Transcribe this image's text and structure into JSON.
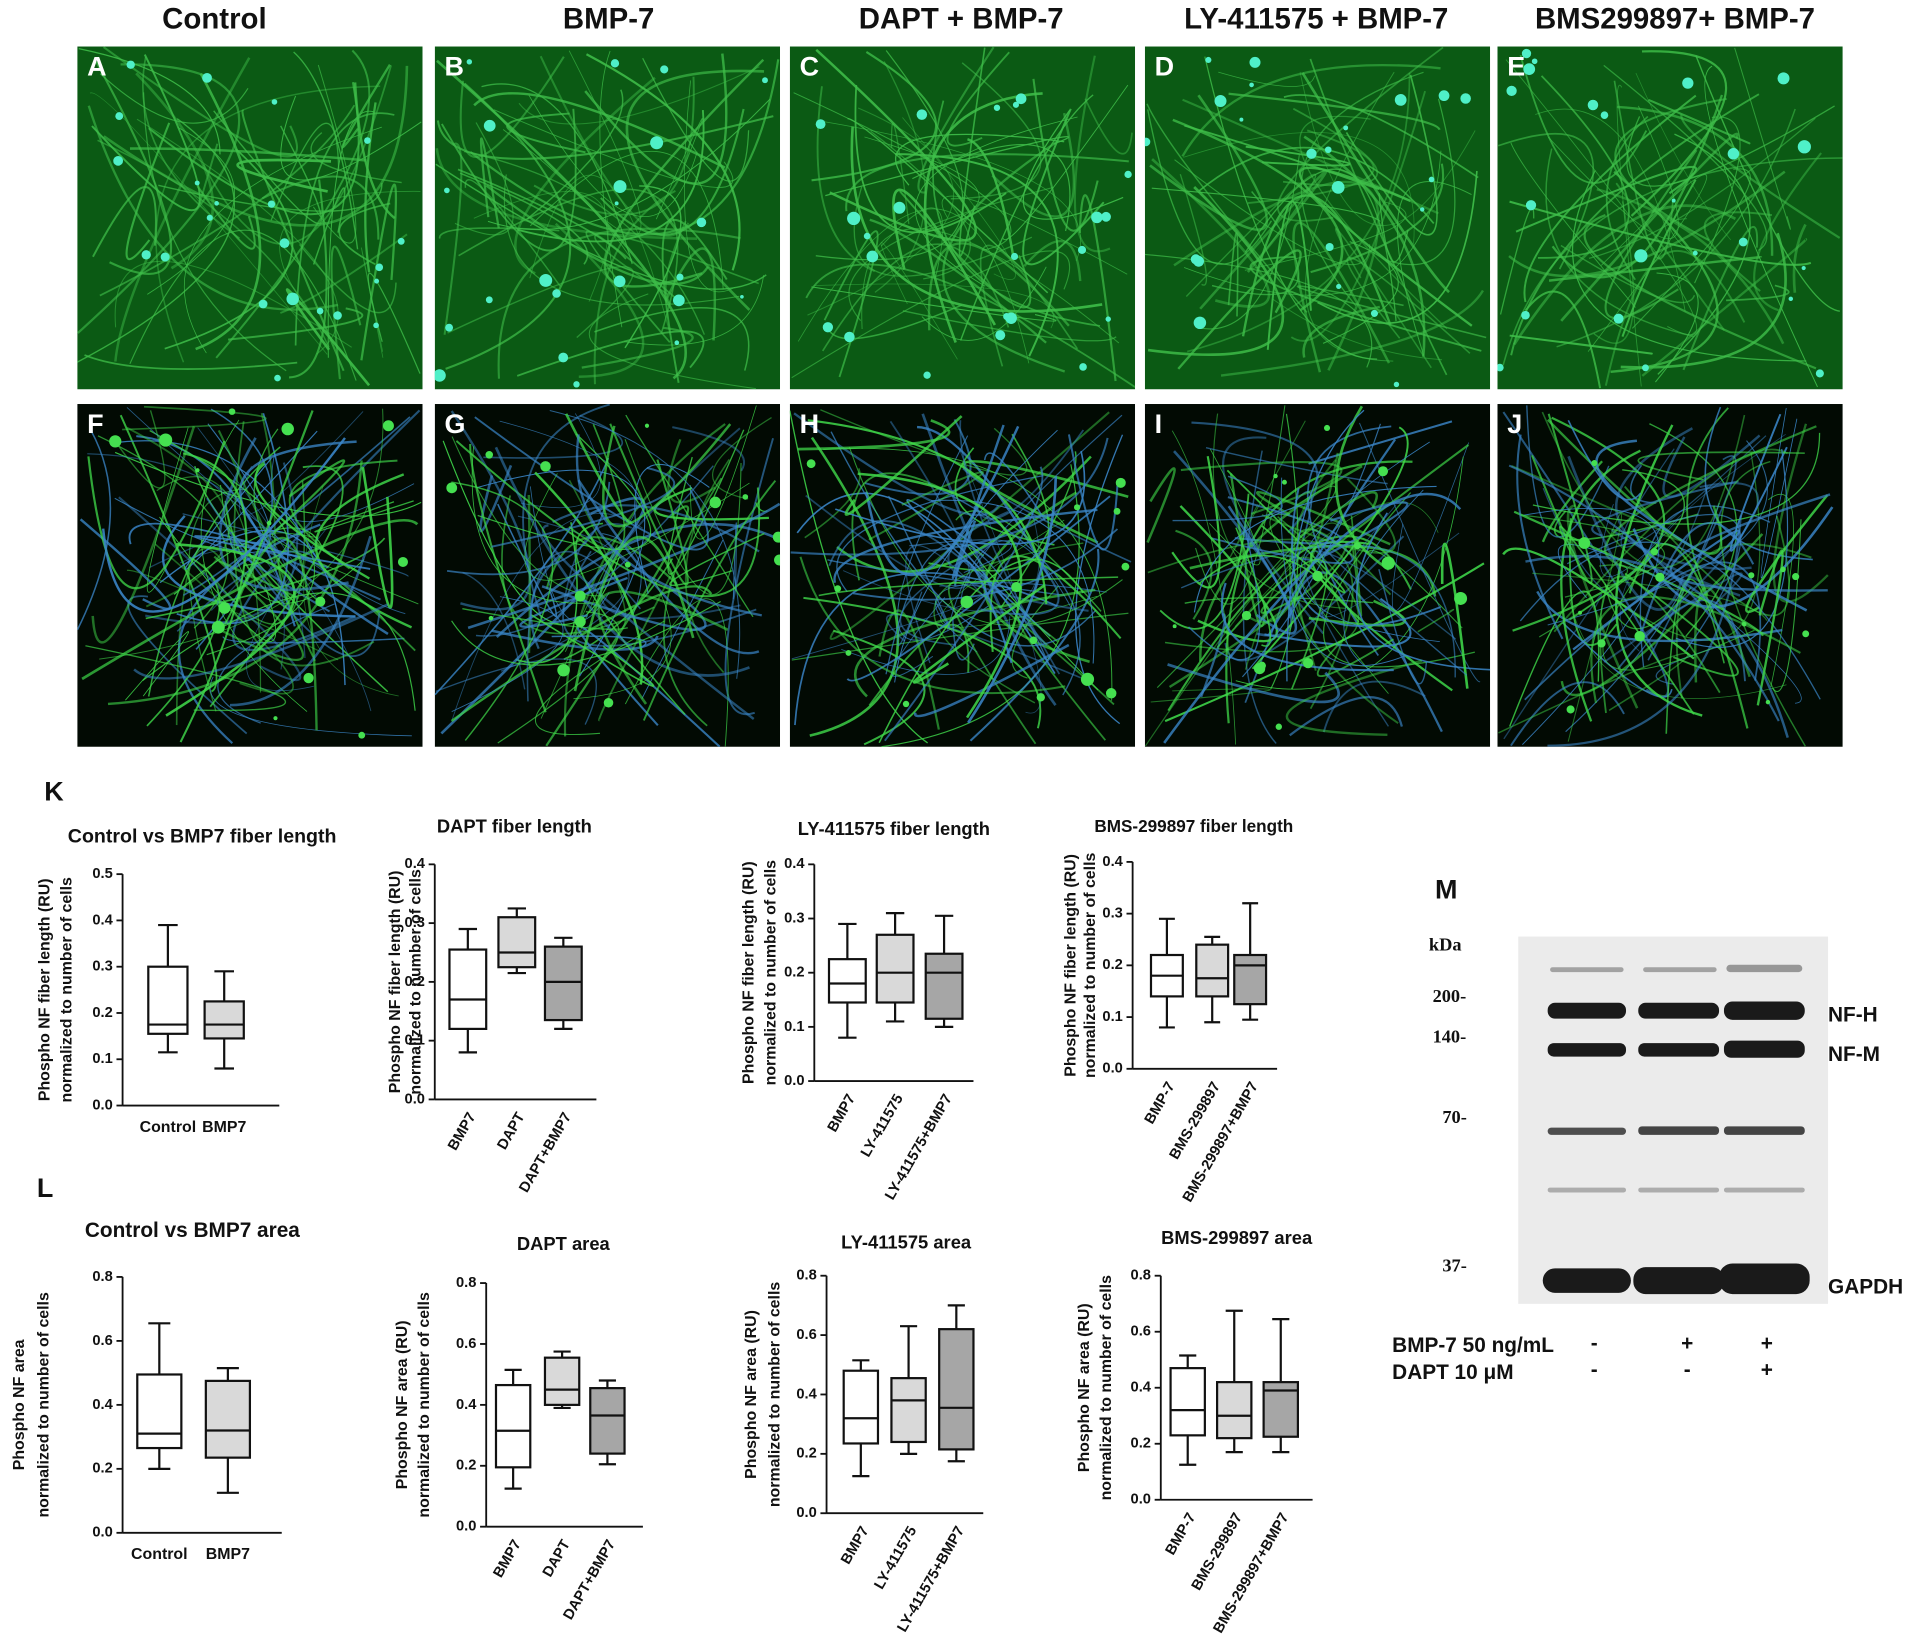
{
  "micrographs": {
    "columns": [
      "Control",
      "BMP-7",
      "DAPT + BMP-7",
      "LY-411575 + BMP-7",
      "BMS299897+ BMP-7"
    ],
    "letters": [
      "A",
      "B",
      "C",
      "D",
      "E",
      "F",
      "G",
      "H",
      "I",
      "J"
    ]
  },
  "section_labels": [
    "K",
    "L"
  ],
  "chart_data": [
    {
      "type": "box",
      "title": "Control vs BMP7 fiber length",
      "y_label": [
        "Phospho NF fiber length (RU)",
        "normalized to number of cells"
      ],
      "categories": [
        "Control",
        "BMP7"
      ],
      "colors": [
        "#ffffff",
        "#d9d9d9"
      ],
      "values": [
        [
          0.115,
          0.155,
          0.175,
          0.3,
          0.39
        ],
        [
          0.08,
          0.145,
          0.175,
          0.225,
          0.29
        ]
      ],
      "ylim": [
        0,
        0.5
      ],
      "yticks": [
        {
          "value": 0,
          "label": "0.0"
        },
        0.1,
        0.2,
        0.3,
        0.4,
        0.5
      ]
    },
    {
      "type": "box",
      "title": "DAPT fiber length",
      "y_label": [
        "Phospho NF fiber length (RU)",
        "normalized to number of cells"
      ],
      "categories": [
        "BMP7",
        "DAPT",
        "DAPT+BMP7"
      ],
      "colors": [
        "#ffffff",
        "#d9d9d9",
        "#a6a6a6"
      ],
      "values": [
        [
          0.08,
          0.12,
          0.17,
          0.255,
          0.29
        ],
        [
          0.215,
          0.225,
          0.25,
          0.31,
          0.325
        ],
        [
          0.12,
          0.135,
          0.2,
          0.26,
          0.275
        ]
      ],
      "ylim": [
        0,
        0.4
      ],
      "yticks": [
        {
          "value": 0,
          "label": "0.0"
        },
        0.1,
        0.2,
        0.3,
        0.4
      ]
    },
    {
      "type": "box",
      "title": "LY-411575 fiber length",
      "y_label": [
        "Phospho NF fiber length (RU)",
        "normalized to number of cells"
      ],
      "categories": [
        "BMP7",
        "LY-411575",
        "LY-411575+BMP7"
      ],
      "colors": [
        "#ffffff",
        "#d9d9d9",
        "#a6a6a6"
      ],
      "values": [
        [
          0.08,
          0.145,
          0.18,
          0.225,
          0.29
        ],
        [
          0.11,
          0.145,
          0.2,
          0.27,
          0.31
        ],
        [
          0.1,
          0.115,
          0.2,
          0.235,
          0.305
        ]
      ],
      "ylim": [
        0,
        0.4
      ],
      "yticks": [
        {
          "value": 0,
          "label": "0.0"
        },
        0.1,
        0.2,
        0.3,
        0.4
      ]
    },
    {
      "type": "box",
      "title": "BMS-299897 fiber length",
      "y_label": [
        "Phospho NF fiber length (RU)",
        "normalized to number of cells"
      ],
      "categories": [
        "BMP-7",
        "BMS-299897",
        "BMS-299897+BMP7"
      ],
      "colors": [
        "#ffffff",
        "#d9d9d9",
        "#a6a6a6"
      ],
      "values": [
        [
          0.08,
          0.14,
          0.18,
          0.22,
          0.29
        ],
        [
          0.09,
          0.14,
          0.175,
          0.24,
          0.255
        ],
        [
          0.095,
          0.125,
          0.2,
          0.22,
          0.32
        ]
      ],
      "ylim": [
        0,
        0.4
      ],
      "yticks": [
        {
          "value": 0,
          "label": "0.0"
        },
        0.1,
        0.2,
        0.3,
        0.4
      ]
    },
    {
      "type": "box",
      "title": "Control vs BMP7 area",
      "y_label": [
        "Phospho NF area",
        "normalized to number of cells"
      ],
      "categories": [
        "Control",
        "BMP7"
      ],
      "colors": [
        "#ffffff",
        "#d9d9d9"
      ],
      "values": [
        [
          0.2,
          0.265,
          0.31,
          0.495,
          0.655
        ],
        [
          0.125,
          0.235,
          0.32,
          0.475,
          0.515
        ]
      ],
      "ylim": [
        0,
        0.8
      ],
      "yticks": [
        {
          "value": 0,
          "label": "0.0"
        },
        0.2,
        0.4,
        0.6,
        0.8
      ]
    },
    {
      "type": "box",
      "title": "DAPT area",
      "y_label": [
        "Phospho NF area (RU)",
        "normalized to number of cells"
      ],
      "categories": [
        "BMP7",
        "DAPT",
        "DAPT+BMP7"
      ],
      "colors": [
        "#ffffff",
        "#d9d9d9",
        "#a6a6a6"
      ],
      "values": [
        [
          0.125,
          0.195,
          0.315,
          0.465,
          0.515
        ],
        [
          0.39,
          0.4,
          0.45,
          0.555,
          0.575
        ],
        [
          0.205,
          0.24,
          0.365,
          0.455,
          0.48
        ]
      ],
      "ylim": [
        0,
        0.8
      ],
      "yticks": [
        {
          "value": 0,
          "label": "0.0"
        },
        0.2,
        0.4,
        0.6,
        0.8
      ]
    },
    {
      "type": "box",
      "title": "LY-411575 area",
      "y_label": [
        "Phospho NF area (RU)",
        "normalized to number of cells"
      ],
      "categories": [
        "BMP7",
        "LY-411575",
        "LY-411575+BMP7"
      ],
      "colors": [
        "#ffffff",
        "#d9d9d9",
        "#a6a6a6"
      ],
      "values": [
        [
          0.125,
          0.235,
          0.32,
          0.48,
          0.515
        ],
        [
          0.2,
          0.24,
          0.38,
          0.455,
          0.63
        ],
        [
          0.175,
          0.215,
          0.355,
          0.62,
          0.7
        ]
      ],
      "ylim": [
        0,
        0.8
      ],
      "yticks": [
        {
          "value": 0,
          "label": "0.0"
        },
        0.2,
        0.4,
        0.6,
        0.8
      ]
    },
    {
      "type": "box",
      "title": "BMS-299897 area",
      "y_label": [
        "Phospho NF area (RU)",
        "normalized to number of cells"
      ],
      "categories": [
        "BMP-7",
        "BMS-299897",
        "BMS-299897+BMP7"
      ],
      "colors": [
        "#ffffff",
        "#d9d9d9",
        "#a6a6a6"
      ],
      "values": [
        [
          0.125,
          0.23,
          0.32,
          0.47,
          0.515
        ],
        [
          0.17,
          0.22,
          0.3,
          0.42,
          0.675
        ],
        [
          0.17,
          0.225,
          0.39,
          0.42,
          0.645
        ]
      ],
      "ylim": [
        0,
        0.8
      ],
      "yticks": [
        {
          "value": 0,
          "label": "0.0"
        },
        0.2,
        0.4,
        0.6,
        0.8
      ]
    }
  ],
  "blot": {
    "label": "M",
    "unit": "kDa",
    "markers": [
      "200-",
      "140-",
      "70-",
      "37-"
    ],
    "bands": [
      "NF-H",
      "NF-M",
      "GAPDH"
    ],
    "conditions": [
      {
        "name": "BMP-7 50 ng/mL",
        "lanes": [
          "-",
          "+",
          "+"
        ]
      },
      {
        "name": "DAPT 10 μM",
        "lanes": [
          "-",
          "-",
          "+"
        ]
      }
    ]
  }
}
